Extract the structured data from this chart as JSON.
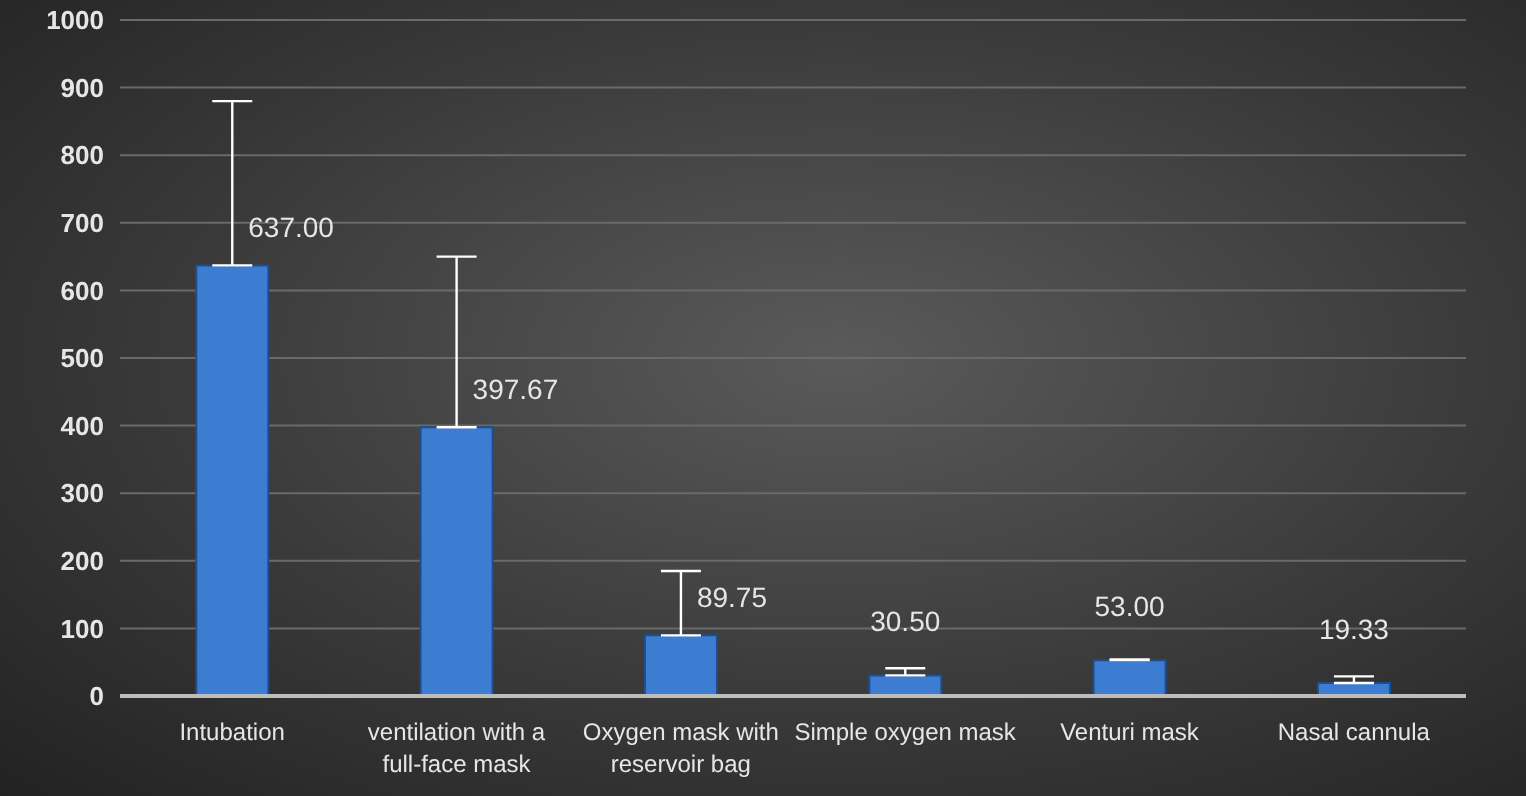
{
  "chart_data": {
    "type": "bar",
    "categories": [
      "Intubation",
      "ventilation with a full-face mask",
      "Oxygen mask with reservoir bag",
      "Simple oxygen mask",
      "Venturi mask",
      "Nasal cannula"
    ],
    "values": [
      637,
      397.67,
      89.75,
      30.5,
      53,
      19.33
    ],
    "value_labels": [
      "637.00",
      "397.67",
      "89.75",
      "30.50",
      "53.00",
      "19.33"
    ],
    "errors": [
      [
        637,
        880
      ],
      [
        397.67,
        650
      ],
      [
        89.75,
        185
      ],
      [
        30.5,
        41
      ],
      [
        53,
        54
      ],
      [
        19.33,
        29
      ]
    ],
    "color": "#3c7dd1",
    "ylim": [
      0,
      1000
    ],
    "yticks": [
      0,
      100,
      200,
      300,
      400,
      500,
      600,
      700,
      800,
      900,
      1000
    ],
    "grid": "y",
    "legend": false
  }
}
